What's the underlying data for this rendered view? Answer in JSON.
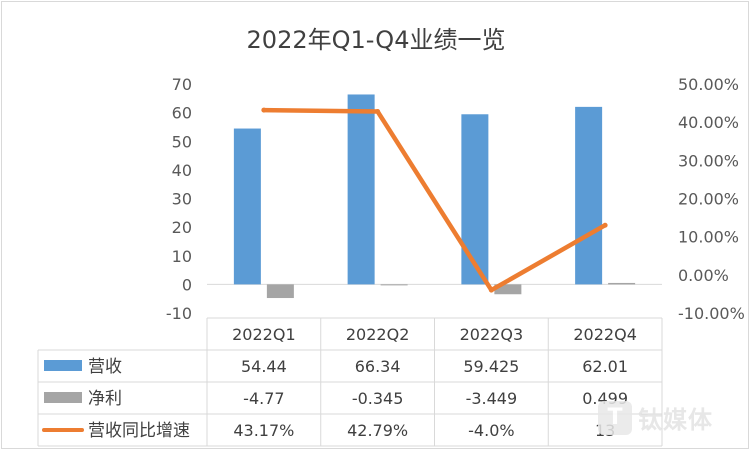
{
  "chart_data": {
    "type": "bar",
    "title": "2022年Q1-Q4业绩一览",
    "categories": [
      "2022Q1",
      "2022Q2",
      "2022Q3",
      "2022Q4"
    ],
    "series": [
      {
        "name": "营收",
        "type": "bar",
        "axis": "left",
        "values": [
          54.44,
          66.34,
          59.425,
          62.01
        ],
        "labels": [
          "54.44",
          "66.34",
          "59.425",
          "62.01"
        ]
      },
      {
        "name": "净利",
        "type": "bar",
        "axis": "left",
        "values": [
          -4.77,
          -0.345,
          -3.449,
          0.499
        ],
        "labels": [
          "-4.77",
          "-0.345",
          "-3.449",
          "0.499"
        ]
      },
      {
        "name": "营收同比增速",
        "type": "line",
        "axis": "right",
        "values": [
          43.17,
          42.79,
          -4.0,
          13
        ],
        "labels": [
          "43.17%",
          "42.79%",
          "-4.0%",
          "13"
        ]
      }
    ],
    "y_left": {
      "ylim": [
        -10,
        70
      ],
      "ticks": [
        "70",
        "60",
        "50",
        "40",
        "30",
        "20",
        "10",
        "0",
        "-10"
      ]
    },
    "y_right": {
      "ylim": [
        -10,
        50
      ],
      "ticks": [
        "50.00%",
        "40.00%",
        "30.00%",
        "20.00%",
        "10.00%",
        "0.00%",
        "-10.00%"
      ]
    },
    "legend": "data-table",
    "grid": false
  },
  "colors": {
    "revenue": "#5b9bd5",
    "profit": "#a5a5a5",
    "growth": "#ed7d31"
  },
  "watermark": {
    "icon": "T",
    "text": "钛媒体"
  }
}
